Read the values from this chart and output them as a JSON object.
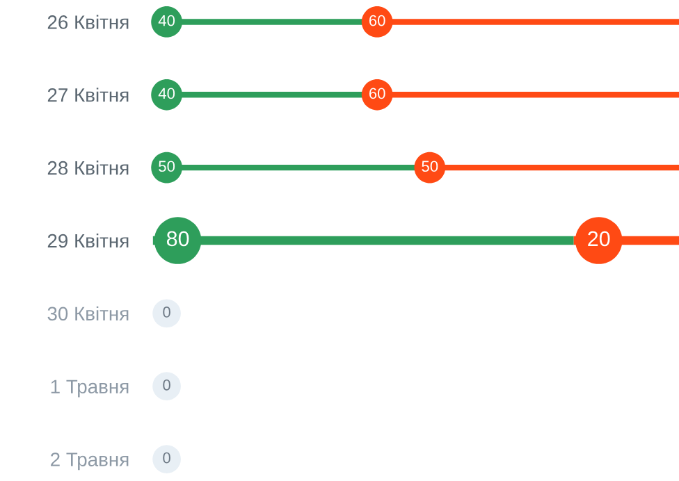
{
  "chart_data": {
    "type": "bar",
    "orientation": "horizontal",
    "stacked": true,
    "categories": [
      "26 Квітня",
      "27 Квітня",
      "28 Квітня",
      "29 Квітня",
      "30 Квітня",
      "1 Травня",
      "2 Травня"
    ],
    "series": [
      {
        "color": "#2e9e5b",
        "values": [
          40,
          40,
          50,
          80,
          0,
          0,
          0
        ],
        "value_labels": [
          "40",
          "40",
          "50",
          "80",
          "0",
          "0",
          "0"
        ]
      },
      {
        "color": "#ff4a14",
        "values": [
          60,
          60,
          50,
          20,
          0,
          0,
          0
        ],
        "value_labels": [
          "60",
          "60",
          "50",
          "20",
          null,
          null,
          null
        ]
      }
    ],
    "xlim": [
      0,
      100
    ],
    "tick_labels": "y",
    "grid": false
  }
}
